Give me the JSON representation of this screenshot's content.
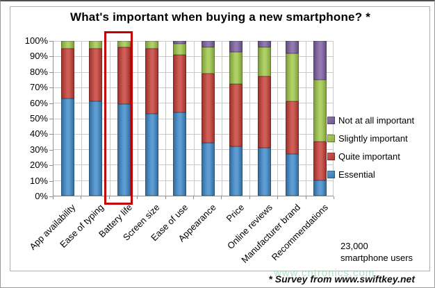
{
  "chart_data": {
    "type": "bar",
    "stacked": true,
    "title": "What's important when buying a new smartphone? *",
    "categories": [
      "App availability",
      "Ease of typing",
      "Battery life",
      "Screen size",
      "Ease of use",
      "Appearance",
      "Price",
      "Online reviews",
      "Manufacturer brand",
      "Recommendations"
    ],
    "series": [
      {
        "name": "Essential",
        "color": "#3A87C8",
        "values": [
          63,
          61,
          59,
          53,
          54,
          34,
          32,
          31,
          27,
          10
        ]
      },
      {
        "name": "Quite important",
        "color": "#C43B32",
        "values": [
          32,
          34,
          37,
          42,
          37,
          45,
          40,
          46,
          34,
          25
        ]
      },
      {
        "name": "Slightly important",
        "color": "#9CC646",
        "values": [
          5,
          5,
          4,
          5,
          7,
          17,
          21,
          19,
          31,
          40
        ]
      },
      {
        "name": "Not at all important",
        "color": "#7A5DA0",
        "values": [
          0,
          0,
          0,
          0,
          2,
          4,
          7,
          4,
          8,
          25
        ]
      }
    ],
    "y_ticks": [
      "0%",
      "10%",
      "20%",
      "30%",
      "40%",
      "50%",
      "60%",
      "70%",
      "80%",
      "90%",
      "100%"
    ],
    "ylim": [
      0,
      100
    ],
    "grid": true,
    "legend_position": "right",
    "legend_order": "reversed",
    "x_tick_label_rotation_deg": 45,
    "highlighted_category": "Battery life",
    "highlight_color": "#C00000"
  },
  "annotations": {
    "sample_size_line1": "23,000",
    "sample_size_line2": "smartphone users",
    "footnote": "* Survey from www.swiftkey.net",
    "watermark": "www.cntronics.com"
  }
}
